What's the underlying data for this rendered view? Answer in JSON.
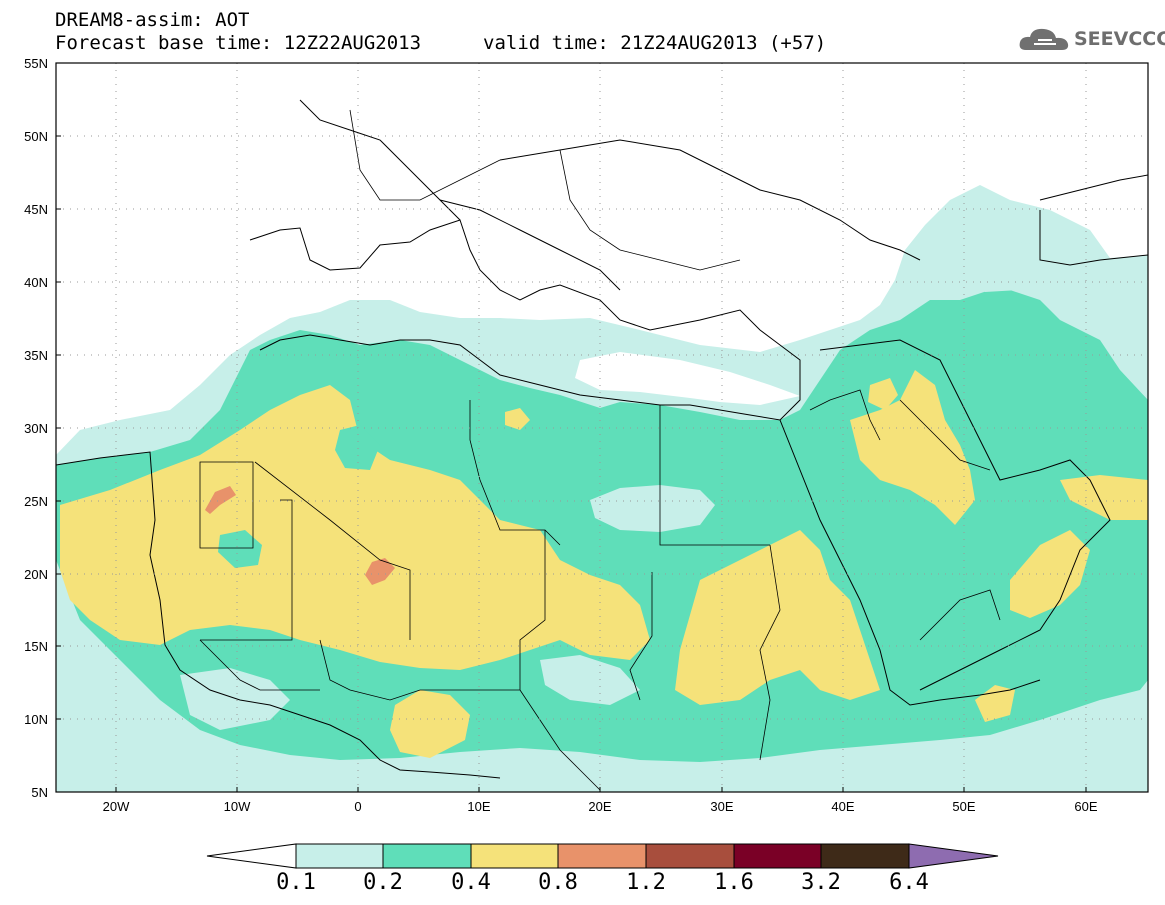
{
  "header": {
    "title_line1": "DREAM8-assim: AOT",
    "title_line2": "Forecast base time: 12Z22AUG2013",
    "valid_time": "valid time: 21Z24AUG2013 (+57)"
  },
  "logo": {
    "text": "SEEVCCC",
    "icon": "cloud-icon"
  },
  "map": {
    "lon_range": [
      -25,
      65
    ],
    "lat_range": [
      5,
      55
    ],
    "x_ticks": [
      "20W",
      "10W",
      "0",
      "10E",
      "20E",
      "30E",
      "40E",
      "50E",
      "60E"
    ],
    "y_ticks": [
      "55N",
      "50N",
      "45N",
      "40N",
      "35N",
      "30N",
      "25N",
      "20N",
      "15N",
      "10N",
      "5N"
    ],
    "grid": "dotted"
  },
  "colorbar": {
    "levels": [
      "0.1",
      "0.2",
      "0.4",
      "0.8",
      "1.2",
      "1.6",
      "3.2",
      "6.4"
    ],
    "colors": [
      "#ffffff",
      "#c7efe9",
      "#5fdeb9",
      "#f5e27a",
      "#e8926a",
      "#a84e3d",
      "#7a0026",
      "#3e2a18",
      "#8e6cb0"
    ]
  }
}
